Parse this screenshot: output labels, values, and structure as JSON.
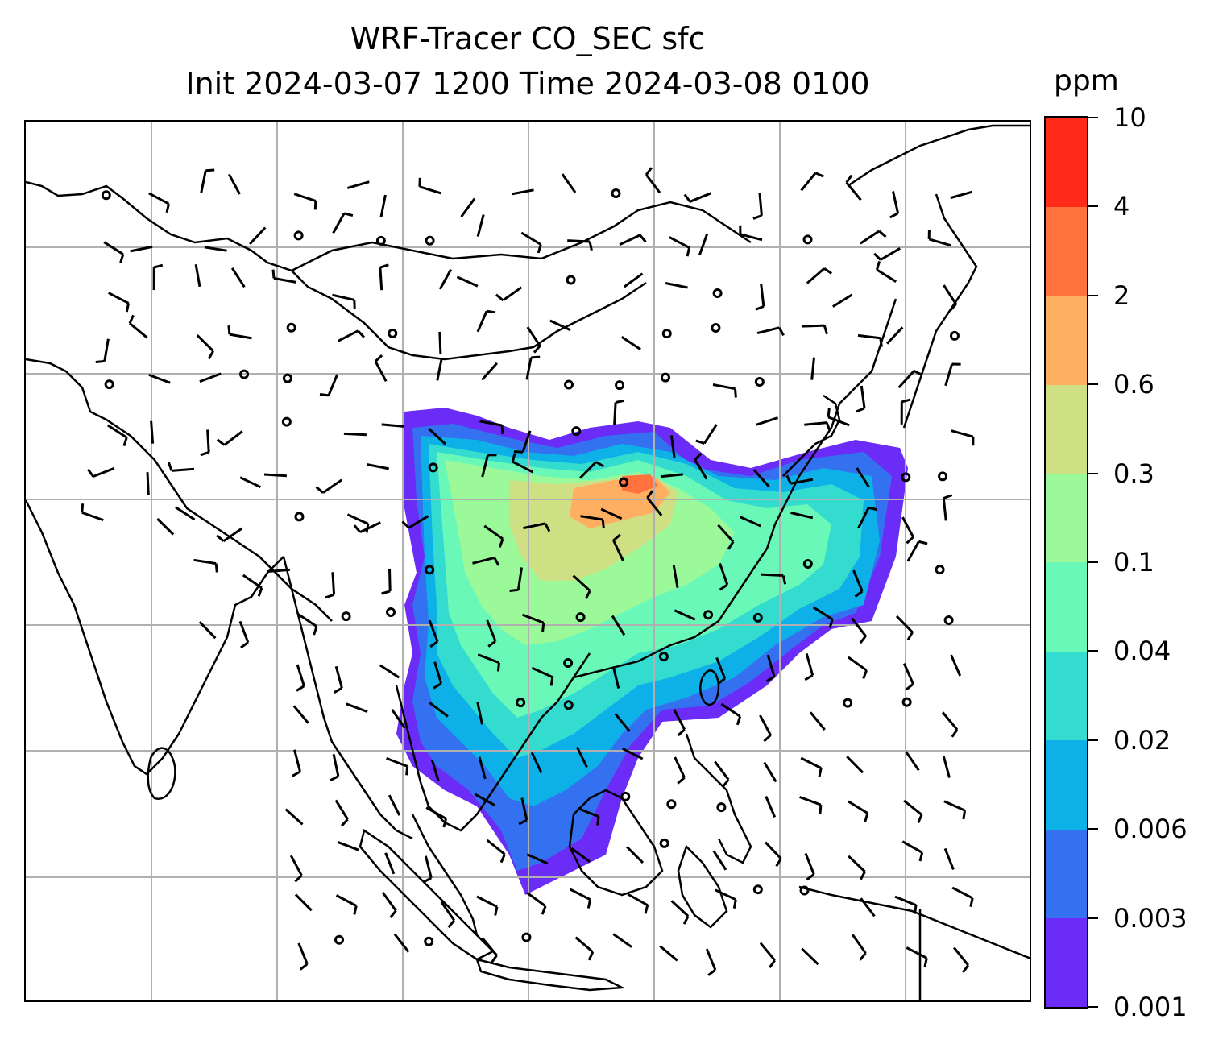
{
  "title": {
    "line1": "WRF-Tracer CO_SEC sfc",
    "line2": "Init 2024-03-07 1200 Time 2024-03-08 0100"
  },
  "colorbar": {
    "unit": "ppm",
    "levels": [
      "0.001",
      "0.003",
      "0.006",
      "0.02",
      "0.04",
      "0.1",
      "0.3",
      "0.6",
      "2",
      "4",
      "10"
    ],
    "colors": [
      "#6a2cf6",
      "#3371f0",
      "#0db1e8",
      "#33dccf",
      "#6af8b9",
      "#9bf99a",
      "#cfdf84",
      "#feaf62",
      "#ff723e",
      "#ff2a19"
    ]
  },
  "map": {
    "features": [
      "coastlines",
      "gridlines",
      "wind-barbs",
      "tracer-concentration-shading"
    ],
    "gridline_color": "#b0b0b0"
  }
}
